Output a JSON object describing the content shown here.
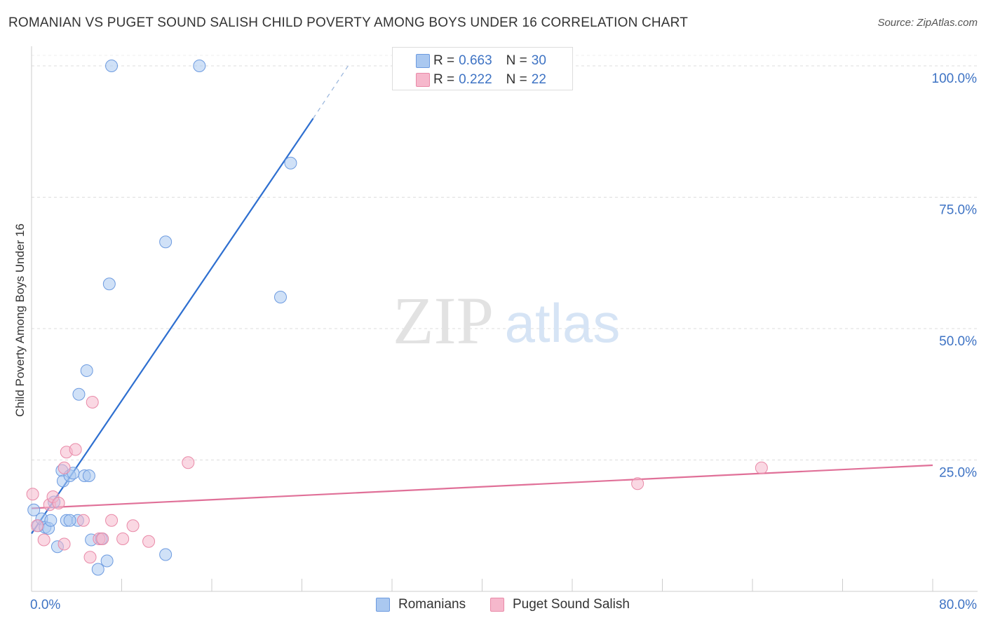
{
  "header": {
    "title": "ROMANIAN VS PUGET SOUND SALISH CHILD POVERTY AMONG BOYS UNDER 16 CORRELATION CHART",
    "source": "Source: ZipAtlas.com"
  },
  "watermark": {
    "zip": "ZIP",
    "atlas": "atlas"
  },
  "legend": {
    "rows": [
      {
        "r_label": "R =",
        "r_value": "0.663",
        "n_label": "N =",
        "n_value": "30"
      },
      {
        "r_label": "R =",
        "r_value": "0.222",
        "n_label": "N =",
        "n_value": "22"
      }
    ]
  },
  "bottom_legend": {
    "items": [
      {
        "label": "Romanians"
      },
      {
        "label": "Puget Sound Salish"
      }
    ]
  },
  "colors": {
    "blue_fill": "#aac8f0",
    "blue_stroke": "#6d9be0",
    "blue_line": "#2e6fd0",
    "pink_fill": "#f6b8cc",
    "pink_stroke": "#e98aa8",
    "pink_line": "#e07098",
    "tick_label": "#3e73c4",
    "grid": "#dddddd"
  },
  "chart_data": {
    "type": "scatter",
    "title": "ROMANIAN VS PUGET SOUND SALISH CHILD POVERTY AMONG BOYS UNDER 16 CORRELATION CHART",
    "xlabel": "",
    "ylabel": "Child Poverty Among Boys Under 16",
    "xlim": [
      0,
      80
    ],
    "ylim": [
      0,
      102
    ],
    "x_tick_labels": [
      {
        "value": 0,
        "label": "0.0%"
      },
      {
        "value": 80,
        "label": "80.0%"
      }
    ],
    "y_tick_labels": [
      {
        "value": 25,
        "label": "25.0%"
      },
      {
        "value": 50,
        "label": "50.0%"
      },
      {
        "value": 75,
        "label": "75.0%"
      },
      {
        "value": 100,
        "label": "100.0%"
      }
    ],
    "x_minor_ticks": [
      0,
      8,
      16,
      24,
      32,
      40,
      48,
      56,
      64,
      72,
      80
    ],
    "grid": true,
    "series": [
      {
        "name": "Romanians",
        "color": "blue",
        "r": 0.663,
        "n": 30,
        "points": [
          [
            0.2,
            15.5
          ],
          [
            0.6,
            12.5
          ],
          [
            0.9,
            13.8
          ],
          [
            1.2,
            12.2
          ],
          [
            1.5,
            12.0
          ],
          [
            1.7,
            13.5
          ],
          [
            2.0,
            17.0
          ],
          [
            2.3,
            8.5
          ],
          [
            2.7,
            23.0
          ],
          [
            2.8,
            21.0
          ],
          [
            3.1,
            13.5
          ],
          [
            3.4,
            22.0
          ],
          [
            3.7,
            22.5
          ],
          [
            4.1,
            13.5
          ],
          [
            4.2,
            37.5
          ],
          [
            4.7,
            22.0
          ],
          [
            4.9,
            42.0
          ],
          [
            5.1,
            22.0
          ],
          [
            5.3,
            9.8
          ],
          [
            5.9,
            4.2
          ],
          [
            6.2,
            10.0
          ],
          [
            6.7,
            5.8
          ],
          [
            6.9,
            58.5
          ],
          [
            7.1,
            100.0
          ],
          [
            11.9,
            7.0
          ],
          [
            11.9,
            66.5
          ],
          [
            14.9,
            100.0
          ],
          [
            22.1,
            56.0
          ],
          [
            23.0,
            81.5
          ],
          [
            3.4,
            13.5
          ]
        ],
        "trend": {
          "x0": 0.0,
          "y0": 11.0,
          "x1": 25.0,
          "y1": 90.0,
          "dash_x1": 28.1,
          "dash_y1": 100.0
        }
      },
      {
        "name": "Puget Sound Salish",
        "color": "pink",
        "r": 0.222,
        "n": 22,
        "points": [
          [
            0.1,
            18.5
          ],
          [
            0.5,
            12.5
          ],
          [
            1.1,
            9.8
          ],
          [
            1.6,
            16.5
          ],
          [
            1.9,
            18.0
          ],
          [
            2.4,
            16.8
          ],
          [
            2.9,
            9.0
          ],
          [
            2.9,
            23.5
          ],
          [
            3.1,
            26.5
          ],
          [
            3.9,
            27.0
          ],
          [
            4.6,
            13.5
          ],
          [
            5.2,
            6.5
          ],
          [
            5.4,
            36.0
          ],
          [
            6.0,
            10.0
          ],
          [
            6.3,
            10.0
          ],
          [
            7.1,
            13.5
          ],
          [
            8.1,
            10.0
          ],
          [
            9.0,
            12.5
          ],
          [
            10.4,
            9.5
          ],
          [
            13.9,
            24.5
          ],
          [
            53.8,
            20.5
          ],
          [
            64.8,
            23.5
          ]
        ],
        "trend": {
          "x0": 0.0,
          "y0": 15.8,
          "x1": 80.0,
          "y1": 24.0
        }
      }
    ]
  }
}
